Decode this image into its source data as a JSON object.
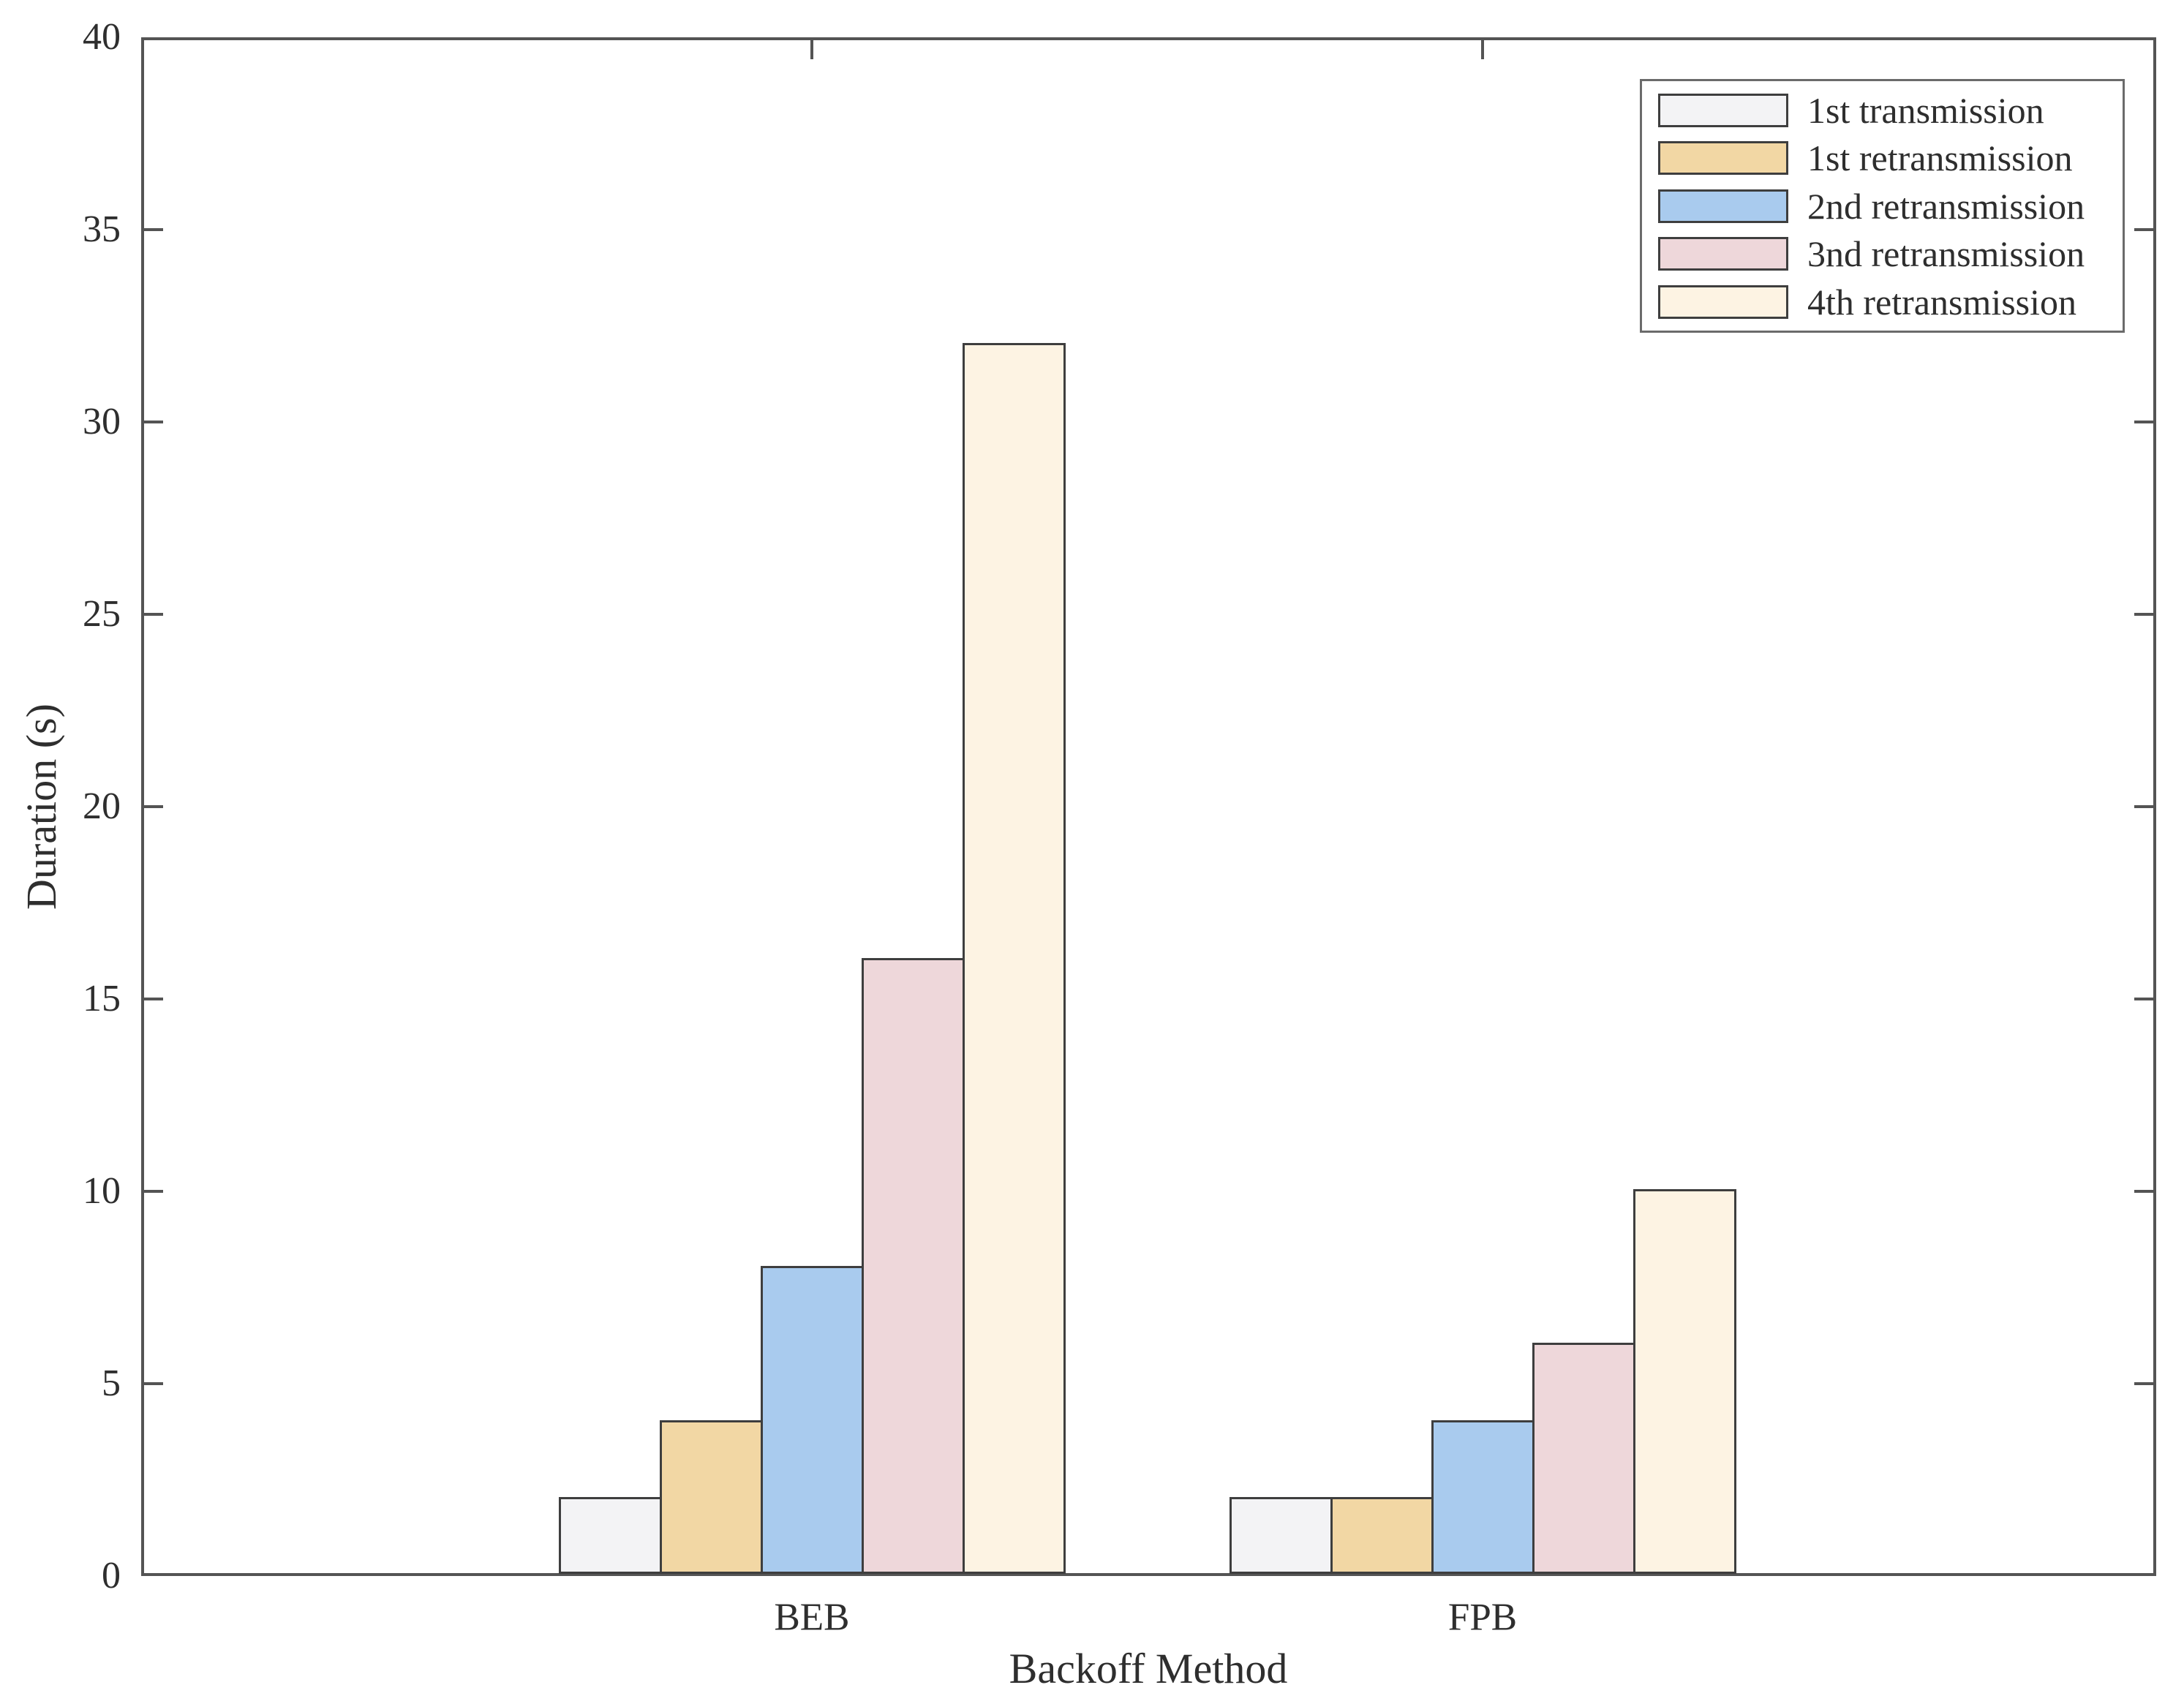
{
  "figure": {
    "background": "#ffffff",
    "axis_color": "#545454",
    "text_color": "#2e2e2e"
  },
  "chart_data": {
    "type": "bar",
    "title": "",
    "categories": [
      "BEB",
      "FPB"
    ],
    "series": [
      {
        "name": "1st transmission",
        "values": [
          2,
          2
        ],
        "fill": "#f3f3f5",
        "edge": "#3e3e3e"
      },
      {
        "name": "1st retransmission",
        "values": [
          4,
          2
        ],
        "fill": "#f2d7a4",
        "edge": "#3e3e3e"
      },
      {
        "name": "2nd retransmission",
        "values": [
          8,
          4
        ],
        "fill": "#a9cbee",
        "edge": "#3e3e3e"
      },
      {
        "name": "3nd retransmission",
        "values": [
          16,
          6
        ],
        "fill": "#eed7da",
        "edge": "#3e3e3e"
      },
      {
        "name": "4th retransmission",
        "values": [
          32,
          10
        ],
        "fill": "#fdf3e3",
        "edge": "#3e3e3e"
      }
    ],
    "xlabel": "Backoff Method",
    "ylabel": "Duration (s)",
    "ylim": [
      0,
      40
    ],
    "yticks": [
      0,
      5,
      10,
      15,
      20,
      25,
      30,
      35,
      40
    ],
    "grid": false,
    "legend_position": "top-right",
    "legend_entries": [
      "1st transmission",
      "1st retransmission",
      "2nd retransmission",
      "3nd retransmission",
      "4th retransmission"
    ]
  }
}
